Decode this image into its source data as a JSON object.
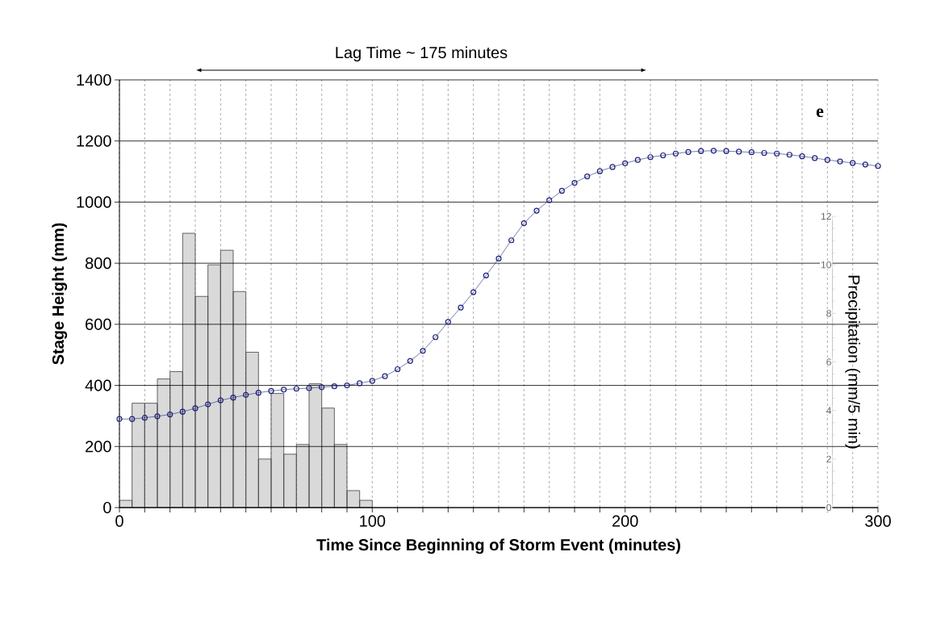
{
  "chart_data": {
    "type": "line",
    "xlabel": "Time Since Beginning of Storm Event (minutes)",
    "ylabel": "Stage Height (mm)",
    "y2label": "Precipitation (mm/5 min)",
    "annotations": [
      "Lag Time ~ 175 minutes",
      "e"
    ],
    "xlim": [
      0,
      300
    ],
    "ylim": [
      0,
      1400
    ],
    "y2lim": [
      0,
      12
    ],
    "xticks": [
      0,
      {
        "value": 10,
        "label": null
      },
      {
        "value": 20,
        "label": null
      },
      {
        "value": 30,
        "label": null
      },
      {
        "value": 40,
        "label": null
      },
      {
        "value": 50,
        "label": null
      },
      {
        "value": 60,
        "label": null
      },
      {
        "value": 70,
        "label": null
      },
      {
        "value": 80,
        "label": null
      },
      {
        "value": 90,
        "label": null
      },
      100,
      {
        "value": 110,
        "label": null
      },
      {
        "value": 120,
        "label": null
      },
      {
        "value": 130,
        "label": null
      },
      {
        "value": 140,
        "label": null
      },
      {
        "value": 150,
        "label": null
      },
      {
        "value": 160,
        "label": null
      },
      {
        "value": 170,
        "label": null
      },
      {
        "value": 180,
        "label": null
      },
      {
        "value": 190,
        "label": null
      },
      200,
      {
        "value": 210,
        "label": null
      },
      {
        "value": 220,
        "label": null
      },
      {
        "value": 230,
        "label": null
      },
      {
        "value": 240,
        "label": null
      },
      {
        "value": 250,
        "label": null
      },
      {
        "value": 260,
        "label": null
      },
      {
        "value": 270,
        "label": null
      },
      {
        "value": 280,
        "label": null
      },
      {
        "value": 290,
        "label": null
      },
      300
    ],
    "yticks": [
      0,
      200,
      400,
      600,
      800,
      1000,
      1200,
      1400
    ],
    "y2ticks": [
      0,
      2,
      4,
      6,
      8,
      10,
      12
    ],
    "grid": true,
    "series": [
      {
        "type": "bar",
        "axis": "y2",
        "color": "#d9d9d9",
        "x": [
          2.5,
          7.5,
          12.5,
          17.5,
          22.5,
          27.5,
          32.5,
          37.5,
          42.5,
          47.5,
          52.5,
          57.5,
          62.5,
          67.5,
          72.5,
          77.5,
          82.5,
          87.5,
          92.5,
          97.5
        ],
        "values": [
          0.3,
          4.3,
          4.3,
          5.3,
          5.6,
          11.3,
          8.7,
          10.0,
          10.6,
          8.9,
          6.4,
          2.0,
          4.7,
          2.2,
          2.6,
          5.1,
          4.1,
          2.6,
          0.7,
          0.3
        ]
      },
      {
        "color": "#1f237a",
        "marker": "circle",
        "line_style": "solid",
        "x": [
          0,
          5,
          10,
          15,
          20,
          25,
          30,
          35,
          40,
          45,
          50,
          55,
          60,
          65,
          70,
          75,
          80,
          85,
          90,
          95,
          100,
          105,
          110,
          115,
          120,
          125,
          130,
          135,
          140,
          145,
          150,
          155,
          160,
          165,
          170,
          175,
          180,
          185,
          190,
          195,
          200,
          205,
          210,
          215,
          220,
          225,
          230,
          235,
          240,
          245,
          250,
          255,
          260,
          265,
          270,
          275,
          280,
          285,
          290,
          295,
          300
        ],
        "values": [
          290,
          290,
          294,
          299,
          305,
          314,
          325,
          338,
          351,
          360,
          369,
          376,
          382,
          386,
          389,
          391,
          394,
          397,
          400,
          407,
          415,
          430,
          453,
          480,
          513,
          558,
          608,
          655,
          705,
          760,
          815,
          875,
          931,
          972,
          1006,
          1037,
          1063,
          1084,
          1101,
          1115,
          1127,
          1138,
          1147,
          1153,
          1159,
          1164,
          1167,
          1168,
          1167,
          1165,
          1163,
          1161,
          1159,
          1155,
          1150,
          1144,
          1138,
          1133,
          1128,
          1123,
          1118
        ]
      }
    ]
  }
}
